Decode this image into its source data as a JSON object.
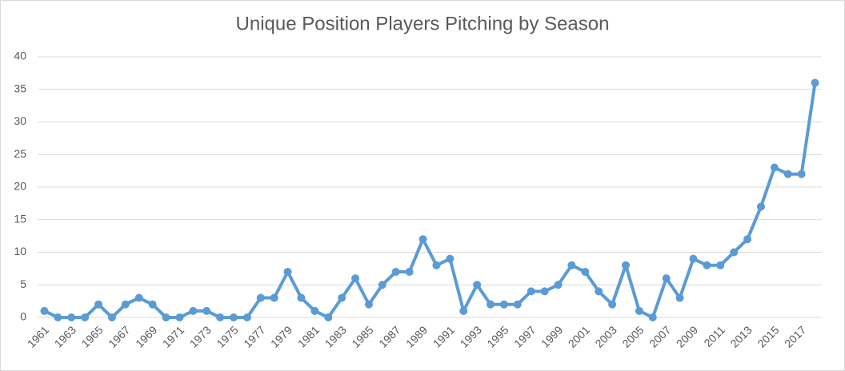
{
  "chart_data": {
    "type": "line",
    "title": "Unique Position Players Pitching by Season",
    "categories": [
      "1961",
      null,
      "1963",
      null,
      "1965",
      null,
      "1967",
      null,
      "1969",
      null,
      "1971",
      null,
      "1973",
      null,
      "1975",
      null,
      "1977",
      null,
      "1979",
      null,
      "1981",
      null,
      "1983",
      null,
      "1985",
      null,
      "1987",
      null,
      "1989",
      null,
      "1991",
      null,
      "1993",
      null,
      "1995",
      null,
      "1997",
      null,
      "1999",
      null,
      "2001",
      null,
      "2003",
      null,
      "2005",
      null,
      "2007",
      null,
      "2009",
      null,
      "2011",
      null,
      "2013",
      null,
      "2015",
      null,
      "2017",
      null
    ],
    "values": [
      1,
      0,
      0,
      0,
      2,
      0,
      2,
      3,
      2,
      0,
      0,
      1,
      1,
      0,
      0,
      0,
      3,
      3,
      7,
      3,
      1,
      0,
      3,
      6,
      2,
      5,
      7,
      7,
      12,
      8,
      9,
      1,
      5,
      2,
      2,
      2,
      4,
      4,
      5,
      8,
      7,
      4,
      2,
      8,
      1,
      0,
      6,
      3,
      9,
      8,
      8,
      10,
      12,
      17,
      23,
      22,
      22,
      36
    ],
    "color": "#5b9bd5",
    "ylim": [
      0,
      40
    ],
    "yticks": [
      0,
      5,
      10,
      15,
      20,
      25,
      30,
      35,
      40
    ],
    "grid": true
  }
}
